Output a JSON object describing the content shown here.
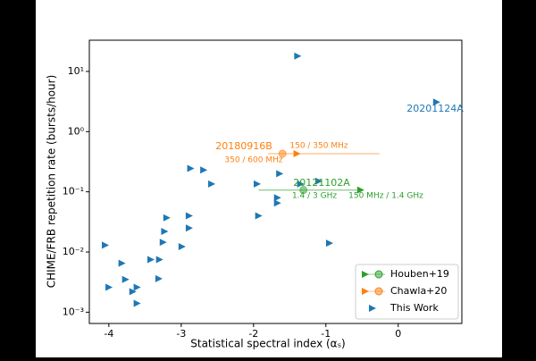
{
  "chart_data": {
    "type": "scatter",
    "xlabel": "Statistical spectral index (αₛ)",
    "ylabel": "CHIME/FRB repetition rate (bursts/hour)",
    "xlim": [
      -4.27,
      0.88
    ],
    "ylim": [
      0.00065,
      33
    ],
    "xticks": [
      -4,
      -3,
      -2,
      -1,
      0
    ],
    "yticks": [
      {
        "value": 0.001,
        "label": "10⁻³"
      },
      {
        "value": 0.01,
        "label": "10⁻²"
      },
      {
        "value": 0.1,
        "label": "10⁻¹"
      },
      {
        "value": 1,
        "label": "10⁰"
      },
      {
        "value": 10,
        "label": "10¹"
      }
    ],
    "log_y": true,
    "legend": "lower right",
    "series": [
      {
        "name": "Houben+19",
        "color": "#2ca02c",
        "x": [
          -0.53,
          -1.31
        ],
        "values": [
          0.107,
          0.107
        ],
        "xerr": [
          0.62,
          0.74
        ]
      },
      {
        "name": "Chawla+20",
        "color": "#ff7f0e",
        "x": [
          -1.41,
          -1.6
        ],
        "values": [
          0.43,
          0.43
        ],
        "xerr": [
          0.2,
          1.34
        ]
      },
      {
        "name": "This Work",
        "color": "#1f77b4",
        "x": [
          -1.4,
          0.52,
          -2.88,
          -2.7,
          -2.59,
          -1.65,
          -1.96,
          -1.36,
          -1.11,
          -1.68,
          -1.68,
          -1.94,
          -3.21,
          -2.9,
          -3.24,
          -2.9,
          -3.26,
          -3.0,
          -4.06,
          -0.96,
          -3.83,
          -3.43,
          -3.31,
          -3.78,
          -3.32,
          -4.01,
          -3.62,
          -3.68,
          -3.62
        ],
        "values": [
          18,
          3.1,
          0.245,
          0.23,
          0.135,
          0.2,
          0.135,
          0.135,
          0.15,
          0.08,
          0.065,
          0.04,
          0.037,
          0.04,
          0.022,
          0.025,
          0.0145,
          0.0123,
          0.013,
          0.014,
          0.0065,
          0.0075,
          0.0075,
          0.0035,
          0.0036,
          0.0026,
          0.0026,
          0.0022,
          0.0014
        ]
      }
    ],
    "annotations": [
      {
        "text": "20201124A",
        "color": "#1f77b4"
      },
      {
        "text": "20180916B",
        "color": "#ff7f0e"
      },
      {
        "text": "150 / 350 MHz",
        "color": "#ff7f0e"
      },
      {
        "text": "350 / 600 MHz",
        "color": "#ff7f0e"
      },
      {
        "text": "20121102A",
        "color": "#2ca02c"
      },
      {
        "text": "1.4 / 3 GHz",
        "color": "#2ca02c"
      },
      {
        "text": "150 MHz / 1.4 GHz",
        "color": "#2ca02c"
      }
    ]
  }
}
